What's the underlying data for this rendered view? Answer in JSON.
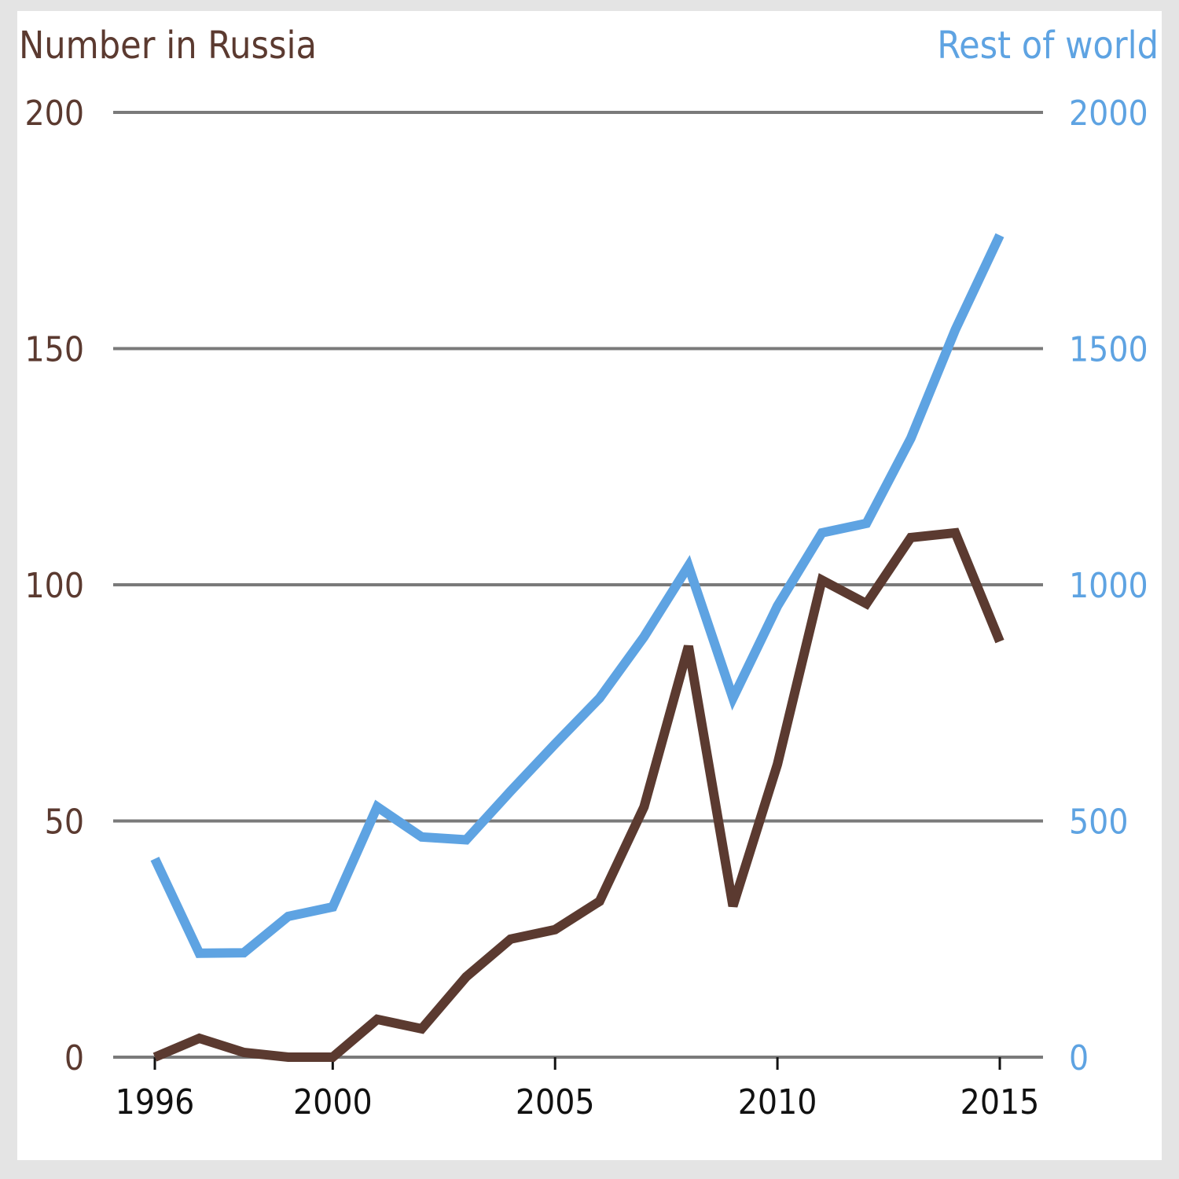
{
  "chart_data": {
    "type": "line",
    "left_axis": {
      "title": "Number in Russia",
      "ticks": [
        0,
        50,
        100,
        150,
        200
      ],
      "ylim": [
        0,
        200
      ],
      "color": "#5b3a30"
    },
    "right_axis": {
      "title": "Rest of world",
      "ticks": [
        0,
        500,
        1000,
        1500,
        2000
      ],
      "ylim": [
        0,
        2000
      ],
      "color": "#5ea3e2"
    },
    "x_ticks": [
      1996,
      2000,
      2005,
      2010,
      2015
    ],
    "xlim": [
      1996,
      2015
    ],
    "grid": true,
    "x": [
      1996,
      1997,
      1998,
      1999,
      2000,
      2001,
      2002,
      2003,
      2004,
      2005,
      2006,
      2007,
      2008,
      2009,
      2010,
      2011,
      2012,
      2013,
      2014,
      2015
    ],
    "series": [
      {
        "name": "Number in Russia",
        "axis": "left",
        "color": "#5b3a30",
        "values": [
          0,
          4,
          1,
          0,
          0,
          8,
          6,
          17,
          25,
          27,
          33,
          53,
          87,
          32,
          62,
          101,
          96,
          110,
          111,
          88
        ]
      },
      {
        "name": "Rest of world",
        "axis": "right",
        "color": "#5ea3e2",
        "values": [
          420,
          220,
          221,
          298,
          318,
          530,
          466,
          460,
          563,
          663,
          760,
          890,
          1040,
          760,
          955,
          1110,
          1130,
          1310,
          1540,
          1740
        ]
      }
    ]
  }
}
